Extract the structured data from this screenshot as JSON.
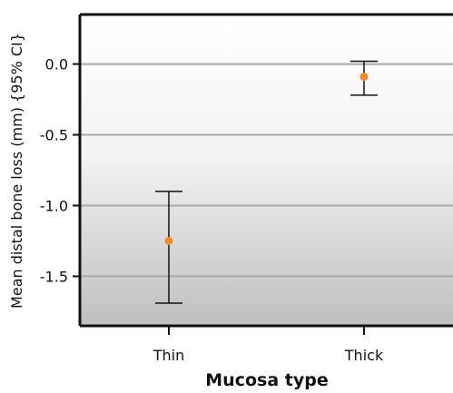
{
  "chart_data": {
    "type": "scatter",
    "title": "",
    "xlabel": "Mucosa type",
    "ylabel": "Mean distal bone loss (mm) {95% CI}",
    "categories": [
      "Thin",
      "Thick"
    ],
    "series": [
      {
        "points": [
          {
            "category": "Thin",
            "mean": -1.25,
            "ci_low": -1.69,
            "ci_high": -0.9
          },
          {
            "category": "Thick",
            "mean": -0.09,
            "ci_low": -0.22,
            "ci_high": 0.02
          }
        ]
      }
    ],
    "ylim": [
      -1.85,
      0.35
    ],
    "yticks": [
      0.0,
      -0.5,
      -1.0,
      -1.5
    ],
    "ytick_labels": [
      "0.0",
      "-0.5",
      "-1.0",
      "-1.5"
    ],
    "grid": true,
    "colors": {
      "point": "#f08a2c",
      "errorbar": "#111111",
      "grid": "#a8a8a8",
      "background_top": "#ffffff",
      "background_bottom": "#bdbdbd"
    }
  }
}
